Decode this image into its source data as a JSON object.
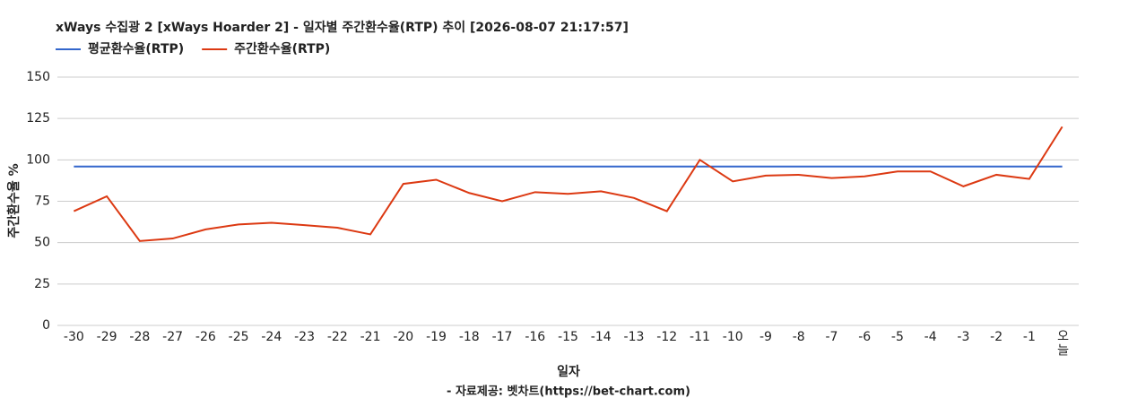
{
  "chart_data": {
    "type": "line",
    "title": "xWays 수집광 2 [xWays Hoarder 2] - 일자별 주간환수율(RTP) 추이 [2026-08-07 21:17:57]",
    "x_label": "일자",
    "y_label": "주간환수율 %",
    "source": "- 자료제공: 벳차트(https://bet-chart.com)",
    "categories": [
      "-30",
      "-29",
      "-28",
      "-27",
      "-26",
      "-25",
      "-24",
      "-23",
      "-22",
      "-21",
      "-20",
      "-19",
      "-18",
      "-17",
      "-16",
      "-15",
      "-14",
      "-13",
      "-12",
      "-11",
      "-10",
      "-9",
      "-8",
      "-7",
      "-6",
      "-5",
      "-4",
      "-3",
      "-2",
      "-1",
      "오늘"
    ],
    "series": [
      {
        "name": "평균환수율(RTP)",
        "color": "#3366cc",
        "values": [
          96,
          96,
          96,
          96,
          96,
          96,
          96,
          96,
          96,
          96,
          96,
          96,
          96,
          96,
          96,
          96,
          96,
          96,
          96,
          96,
          96,
          96,
          96,
          96,
          96,
          96,
          96,
          96,
          96,
          96,
          96
        ]
      },
      {
        "name": "주간환수율(RTP)",
        "color": "#dc3912",
        "values": [
          69,
          78,
          51,
          52.5,
          58,
          61,
          62,
          60.6,
          59,
          55,
          85.5,
          88,
          80,
          75,
          80.5,
          79.5,
          81,
          77,
          69,
          100,
          87,
          90.5,
          91,
          89,
          90,
          93,
          93,
          84,
          91,
          88.5,
          120
        ]
      }
    ],
    "ylim": [
      0,
      150
    ],
    "yticks": [
      0,
      25,
      50,
      75,
      100,
      125,
      150
    ],
    "grid": true,
    "legend": "top-left"
  }
}
